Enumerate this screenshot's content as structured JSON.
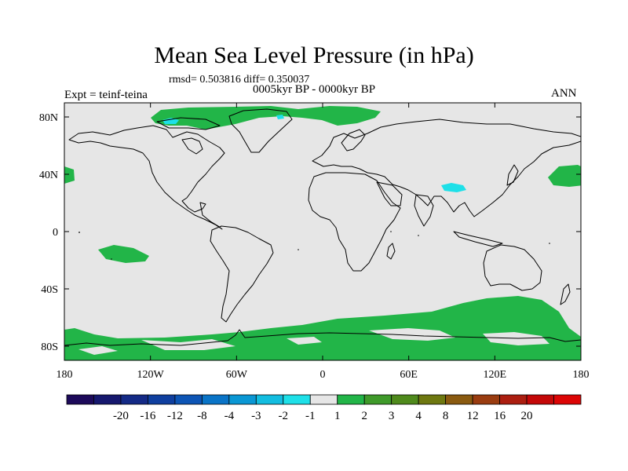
{
  "title": "Mean Sea Level Pressure (in hPa)",
  "stats": "rmsd= 0.503816 diff= 0.350037",
  "period": "0005kyr BP - 0000kyr BP",
  "experiment": "Expt = teinf-teina",
  "season": "ANN",
  "lat_labels": [
    "80N",
    "40N",
    "0",
    "40S",
    "80S"
  ],
  "lon_labels": [
    "180",
    "120W",
    "60W",
    "0",
    "60E",
    "120E",
    "180"
  ],
  "colorbar": {
    "colors": [
      "#1d0a5a",
      "#16186e",
      "#142a86",
      "#0f3f9f",
      "#0d55b5",
      "#0a74c7",
      "#0a97d4",
      "#13bde0",
      "#1ee0e8",
      "#e6e6e6",
      "#22b548",
      "#3f9a2a",
      "#4f8a1c",
      "#6e7810",
      "#8a5a10",
      "#9a3c10",
      "#ac1e10",
      "#c40808",
      "#dc0505"
    ],
    "labels": [
      "-20",
      "-16",
      "-12",
      "-8",
      "-4",
      "-3",
      "-2",
      "-1",
      "1",
      "2",
      "3",
      "4",
      "8",
      "12",
      "16",
      "20"
    ]
  },
  "colors": {
    "background_field": "#e6e6e6",
    "positive": "#22b548",
    "negative": "#1ee0e8",
    "coast": "#000000"
  }
}
